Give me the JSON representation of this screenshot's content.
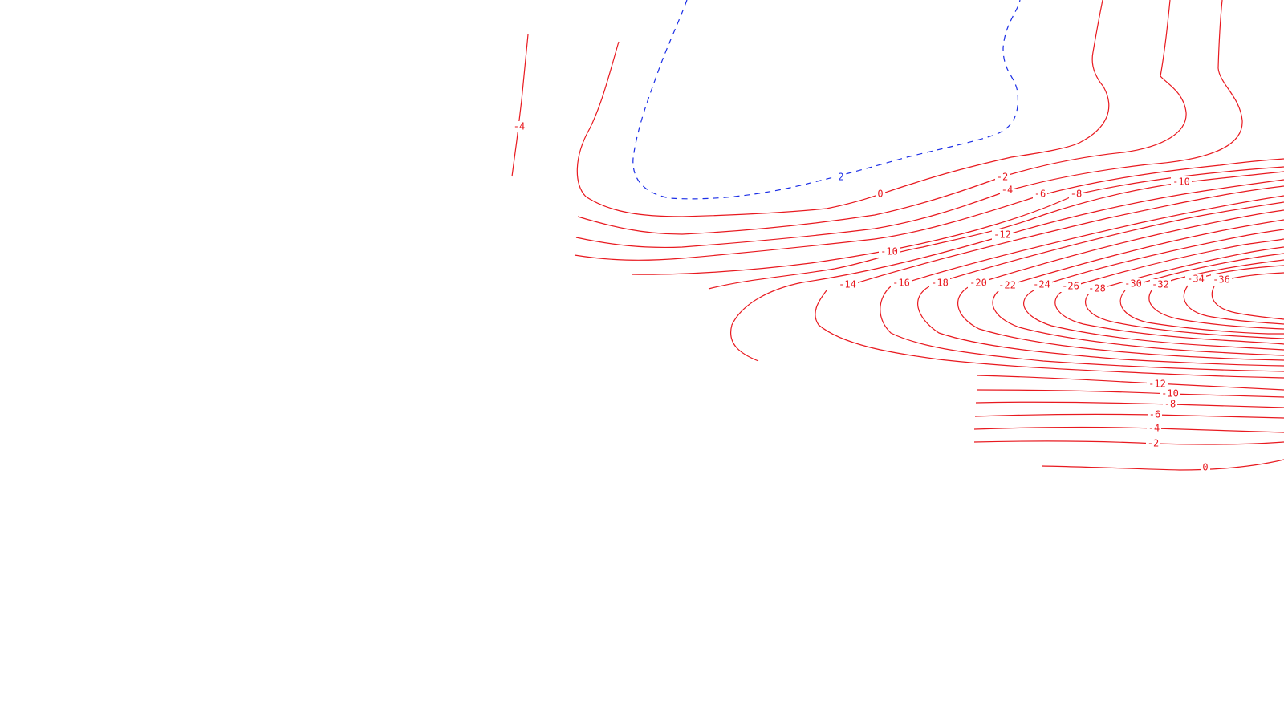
{
  "contour_map": {
    "colors": {
      "negative_lines": "#e8191f",
      "positive_lines": "#1b2ee6",
      "background": "#ffffff"
    },
    "labels": {
      "upper_left_isolated": "-4",
      "dashed_contour": "2",
      "outer_zero": "0",
      "upper_m2": "-2",
      "upper_m4": "-4",
      "upper_m6": "-6",
      "upper_m8": "-8",
      "upper_m10": "-10",
      "left_m10": "-10",
      "left_m12": "-12",
      "m14": "-14",
      "m16": "-16",
      "m18": "-18",
      "m20": "-20",
      "m22": "-22",
      "m24": "-24",
      "m26": "-26",
      "m28": "-28",
      "m30": "-30",
      "m32": "-32",
      "m34": "-34",
      "m36": "-36",
      "lower_m12": "-12",
      "lower_m10": "-10",
      "lower_m8": "-8",
      "lower_m6": "-6",
      "lower_m4": "-4",
      "lower_m2": "-2",
      "lower_zero": "0"
    }
  }
}
